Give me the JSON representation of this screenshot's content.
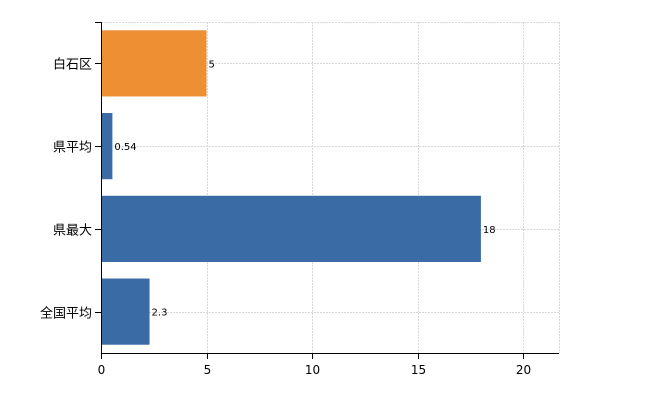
{
  "chart_data": {
    "type": "bar",
    "orientation": "horizontal",
    "categories": [
      "白石区",
      "県平均",
      "県最大",
      "全国平均"
    ],
    "values": [
      5,
      0.54,
      18,
      2.3
    ],
    "data_labels": [
      "5",
      "0.54",
      "18",
      "2.3"
    ],
    "xlim": [
      0,
      21.7
    ],
    "x_ticks": [
      0,
      5,
      10,
      15,
      20
    ],
    "x_tick_labels": [
      "0",
      "5",
      "10",
      "15",
      "20"
    ],
    "grid": true,
    "legend": "none",
    "title": "",
    "xlabel": "",
    "ylabel": "",
    "colors": {
      "highlight": "#EE8F34",
      "default": "#3A6BA5"
    },
    "highlight_index": 0
  }
}
